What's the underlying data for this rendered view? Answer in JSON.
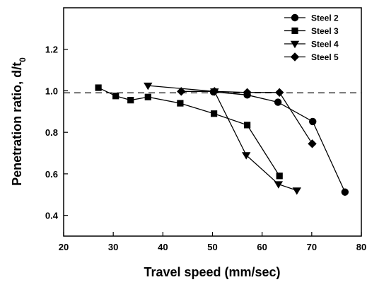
{
  "chart_data": {
    "type": "line",
    "title": "",
    "xlabel": "Travel speed (mm/sec)",
    "ylabel_main": "Penetration ratio, d/t",
    "ylabel_sub": "0",
    "xlim": [
      20,
      80
    ],
    "ylim": [
      0.3,
      1.4
    ],
    "xticks": [
      20,
      30,
      40,
      50,
      60,
      70,
      80
    ],
    "yticks": [
      0.4,
      0.6,
      0.8,
      1.0,
      1.2
    ],
    "ytick_labels": [
      "0.4",
      "0.6",
      "0.8",
      "1.0",
      "1.2"
    ],
    "reference_line": 0.99,
    "grid": false,
    "legend_position": "top-right",
    "series": [
      {
        "name": "Steel 2",
        "marker": "circle",
        "points": [
          [
            50.2,
            0.995
          ],
          [
            57,
            0.98
          ],
          [
            63.2,
            0.945
          ],
          [
            70.2,
            0.852
          ],
          [
            76.7,
            0.512
          ]
        ]
      },
      {
        "name": "Steel 3",
        "marker": "square",
        "points": [
          [
            27,
            1.015
          ],
          [
            30.5,
            0.975
          ],
          [
            33.5,
            0.955
          ],
          [
            37,
            0.97
          ],
          [
            43.5,
            0.94
          ],
          [
            50.3,
            0.89
          ],
          [
            57,
            0.835
          ],
          [
            63.5,
            0.59
          ]
        ]
      },
      {
        "name": "Steel 4",
        "marker": "triangle-down",
        "points": [
          [
            37,
            1.025
          ],
          [
            50.4,
            0.997
          ],
          [
            56.8,
            0.69
          ],
          [
            63.3,
            0.55
          ],
          [
            67,
            0.52
          ]
        ]
      },
      {
        "name": "Steel 5",
        "marker": "diamond",
        "points": [
          [
            43.7,
            0.997
          ],
          [
            50.4,
            0.997
          ],
          [
            57,
            0.992
          ],
          [
            63.5,
            0.992
          ],
          [
            70.1,
            0.745
          ]
        ]
      }
    ]
  }
}
